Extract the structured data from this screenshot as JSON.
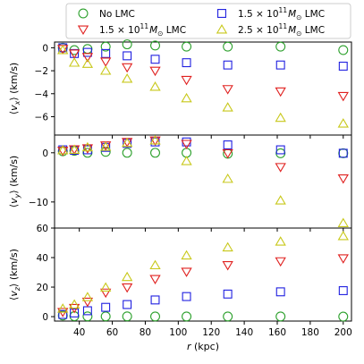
{
  "chart_data": {
    "type": "scatter",
    "legend": {
      "placement": "top-center",
      "ncol": 2,
      "entries": [
        {
          "series_index": 0,
          "text": "No LMC"
        },
        {
          "series_index": 1,
          "text": "1.5 × 10¹¹ M⊙ LMC",
          "prefix": "1.5",
          "exponent": "11",
          "suffix": "LMC"
        },
        {
          "series_index": 2,
          "text": "1.5 × 10¹¹ M⊙ LMC",
          "prefix": "1.5",
          "exponent": "11",
          "suffix": "LMC"
        },
        {
          "series_index": 3,
          "text": "2.5 × 10¹¹ M⊙ LMC",
          "prefix": "2.5",
          "exponent": "11",
          "suffix": "LMC"
        }
      ]
    },
    "series": [
      {
        "marker": "circle",
        "color": "#2ca02c"
      },
      {
        "marker": "square",
        "color": "#1f1fe0"
      },
      {
        "marker": "triangle-down",
        "color": "#e0201f"
      },
      {
        "marker": "triangle-up",
        "color": "#c8c81a"
      }
    ],
    "x": [
      30,
      37,
      45,
      56,
      69,
      86,
      105,
      130,
      162,
      200
    ],
    "xlabel": {
      "text": "r (kpc)",
      "symbol": "r",
      "unit": "(kpc)"
    },
    "xlim": [
      25,
      205
    ],
    "xticks": [
      40,
      60,
      80,
      100,
      120,
      140,
      160,
      180,
      200
    ],
    "panels": [
      {
        "ylabel": {
          "text": "⟨v_x⟩ (km/s)",
          "symbol": "v",
          "sub": "x",
          "unit": "(km/s)"
        },
        "ylim": [
          -7.6,
          0.5
        ],
        "yticks": [
          0,
          -2,
          -4,
          -6
        ],
        "values": [
          [
            0.0,
            -0.2,
            -0.1,
            0.1,
            0.3,
            0.2,
            0.1,
            0.1,
            0.1,
            -0.2
          ],
          [
            0.0,
            -0.5,
            -0.4,
            -0.5,
            -0.7,
            -1.0,
            -1.3,
            -1.5,
            -1.5,
            -1.6
          ],
          [
            -0.1,
            -0.5,
            -0.8,
            -1.2,
            -1.7,
            -2.0,
            -2.8,
            -3.6,
            -3.8,
            -4.2
          ],
          [
            -0.2,
            -1.3,
            -1.4,
            -2.0,
            -2.7,
            -3.4,
            -4.4,
            -5.2,
            -6.1,
            -6.6
          ]
        ]
      },
      {
        "ylabel": {
          "text": "⟨v_y⟩ (km/s)",
          "symbol": "v",
          "sub": "y",
          "unit": "(km/s)"
        },
        "ylim": [
          -15.3,
          3.6
        ],
        "yticks": [
          0,
          -10
        ],
        "values": [
          [
            0.3,
            0.4,
            0.0,
            0.2,
            0.0,
            0.0,
            0.0,
            -0.2,
            -0.1,
            -0.1
          ],
          [
            0.6,
            0.5,
            0.6,
            1.1,
            1.9,
            2.2,
            2.2,
            1.6,
            0.6,
            -0.1
          ],
          [
            0.4,
            0.7,
            0.9,
            1.5,
            2.2,
            2.5,
            1.8,
            -0.1,
            -2.9,
            -5.2
          ],
          [
            0.5,
            0.6,
            1.1,
            1.2,
            2.0,
            2.5,
            -1.7,
            -5.3,
            -9.7,
            -14.3
          ]
        ]
      },
      {
        "ylabel": {
          "text": "⟨v_z⟩ (km/s)",
          "symbol": "v",
          "sub": "z",
          "unit": "(km/s)"
        },
        "ylim": [
          -3,
          60
        ],
        "yticks": [
          0,
          20,
          40,
          60
        ],
        "values": [
          [
            0.8,
            0.3,
            0.2,
            0.2,
            0.2,
            0.1,
            0.1,
            0.1,
            0.1,
            0.0
          ],
          [
            1.5,
            2.5,
            4.0,
            6.3,
            8.2,
            11.3,
            13.6,
            15.3,
            16.8,
            17.6
          ],
          [
            3.2,
            5.9,
            10.1,
            16.3,
            19.8,
            25.5,
            30.4,
            34.9,
            37.5,
            39.5
          ],
          [
            5.4,
            8.2,
            13.2,
            19.7,
            26.8,
            34.8,
            41.4,
            46.9,
            50.8,
            54.5
          ]
        ]
      }
    ]
  }
}
